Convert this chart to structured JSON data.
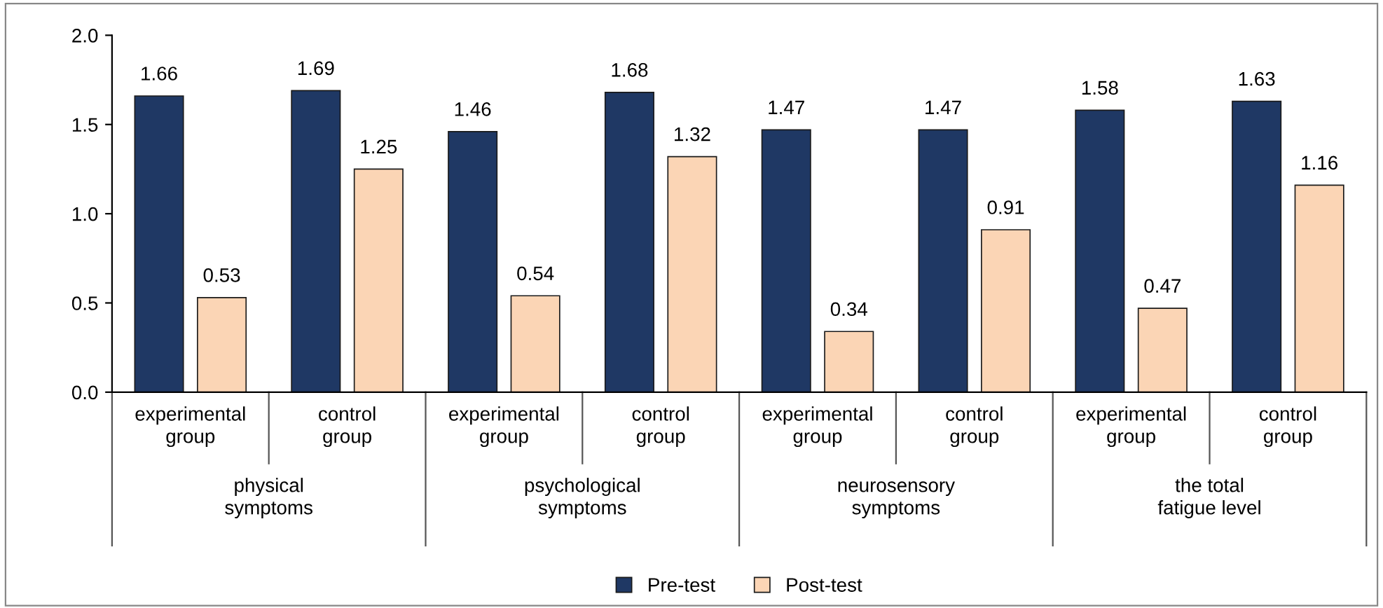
{
  "chart_data": {
    "type": "bar",
    "categories": [
      "experimental\ngroup",
      "control\ngroup",
      "experimental\ngroup",
      "control\ngroup",
      "experimental\ngroup",
      "control\ngroup",
      "experimental\ngroup",
      "control\ngroup"
    ],
    "series": [
      {
        "name": "Pre-test",
        "color": "#1f3864",
        "values": [
          1.66,
          1.69,
          1.46,
          1.68,
          1.47,
          1.47,
          1.58,
          1.63
        ]
      },
      {
        "name": "Post-test",
        "color": "#fbd5b5",
        "values": [
          0.53,
          1.25,
          0.54,
          1.32,
          0.34,
          0.91,
          0.47,
          1.16
        ]
      }
    ],
    "annotations": [
      "physical\nsymptoms",
      "psychological\nsymptoms",
      "neurosensory\nsymptoms",
      "the total\nfatigue level"
    ],
    "ylim": [
      0,
      2
    ],
    "yticks": [
      {
        "value": 0,
        "label": "0.0"
      },
      {
        "value": 0.5,
        "label": "0.5"
      },
      {
        "value": 1,
        "label": "1.0"
      },
      {
        "value": 1.5,
        "label": "1.5"
      },
      {
        "value": 2,
        "label": "2.0"
      }
    ],
    "grid": false,
    "legend": "bottom",
    "data_labels": true
  }
}
